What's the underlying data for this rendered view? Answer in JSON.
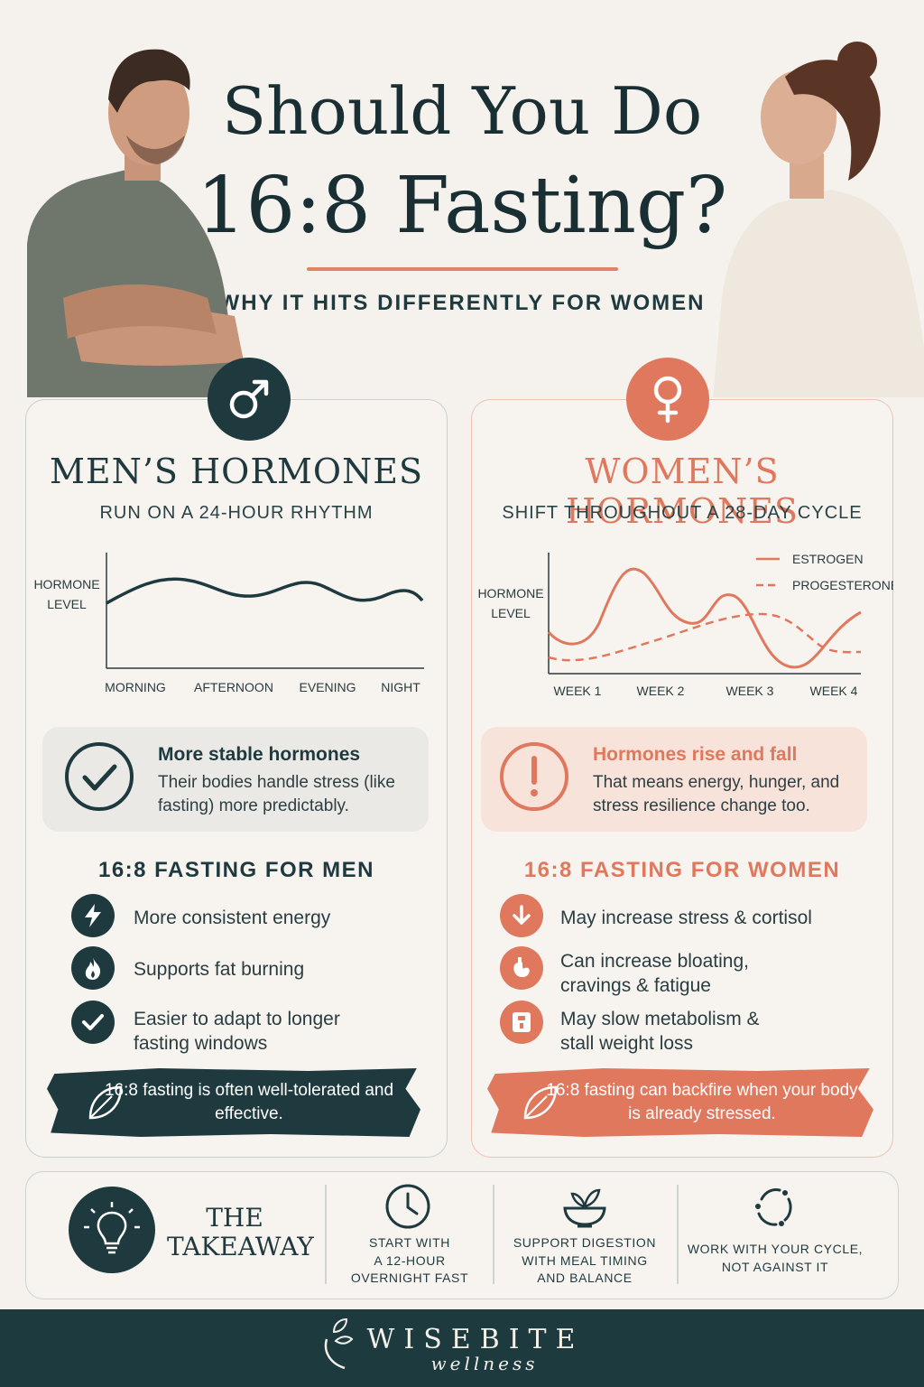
{
  "title": {
    "line1": "Should You Do",
    "line2": "16:8 Fasting?",
    "subtitle": "WHY IT HITS DIFFERENTLY FOR WOMEN"
  },
  "men": {
    "heading": "MEN’S HORMONES",
    "subheading": "RUN ON A 24-HOUR RHYTHM",
    "chart": {
      "ylabel_line1": "HORMONE",
      "ylabel_line2": "LEVEL",
      "x_labels": [
        "MORNING",
        "AFTERNOON",
        "EVENING",
        "NIGHT"
      ]
    },
    "info": {
      "title": "More stable hormones",
      "text": "Their bodies handle stress (like fasting) more predictably."
    },
    "list_heading": "16:8 FASTING FOR MEN",
    "items": [
      {
        "icon": "lightning-icon",
        "text": "More consistent energy"
      },
      {
        "icon": "flame-icon",
        "text": "Supports fat burning"
      },
      {
        "icon": "check-icon",
        "text": "Easier to adapt to longer fasting windows"
      }
    ],
    "note": "16:8 fasting is often well-tolerated and effective."
  },
  "women": {
    "heading": "WOMEN’S HORMONES",
    "subheading": "SHIFT THROUGHOUT A 28-DAY CYCLE",
    "chart": {
      "ylabel_line1": "HORMONE",
      "ylabel_line2": "LEVEL",
      "x_labels": [
        "WEEK 1",
        "WEEK 2",
        "WEEK 3",
        "WEEK 4"
      ],
      "legend": [
        "ESTROGEN",
        "PROGESTERONE"
      ]
    },
    "info": {
      "title": "Hormones rise and fall",
      "text": "That means energy, hunger, and stress resilience change too."
    },
    "list_heading": "16:8 FASTING FOR WOMEN",
    "items": [
      {
        "icon": "arrow-down-icon",
        "text": "May increase stress & cortisol"
      },
      {
        "icon": "stomach-icon",
        "text": "Can increase bloating, cravings & fatigue"
      },
      {
        "icon": "scale-icon",
        "text": "May slow metabolism & stall weight loss"
      }
    ],
    "note": "16:8 fasting can backfire when your body is already stressed."
  },
  "takeaway": {
    "title_line1": "THE",
    "title_line2": "TAKEAWAY",
    "tips": [
      {
        "icon": "clock-icon",
        "line1": "START WITH",
        "line2": "A 12-HOUR",
        "line3": "OVERNIGHT FAST"
      },
      {
        "icon": "bowl-icon",
        "line1": "SUPPORT DIGESTION",
        "line2": "WITH MEAL TIMING",
        "line3": "AND BALANCE"
      },
      {
        "icon": "cycle-icon",
        "line1": "WORK WITH YOUR CYCLE,",
        "line2": "NOT AGAINST IT"
      }
    ]
  },
  "brand": {
    "name": "WISEBITE",
    "sub": "wellness"
  },
  "colors": {
    "teal": "#1f3a3f",
    "coral": "#e0785d",
    "background": "#f5f2ee"
  }
}
